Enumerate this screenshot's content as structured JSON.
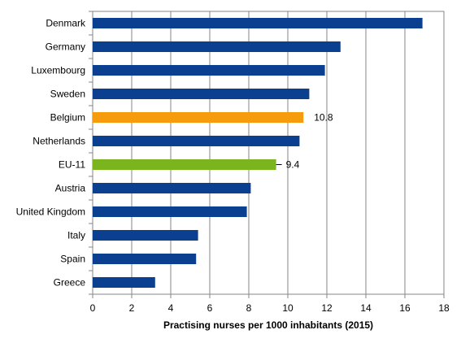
{
  "chart_data": {
    "type": "bar",
    "orientation": "horizontal",
    "categories": [
      "Denmark",
      "Germany",
      "Luxembourg",
      "Sweden",
      "Belgium",
      "Netherlands",
      "EU-11",
      "Austria",
      "United Kingdom",
      "Italy",
      "Spain",
      "Greece"
    ],
    "values": [
      16.9,
      12.7,
      11.9,
      11.1,
      10.8,
      10.6,
      9.4,
      8.1,
      7.9,
      5.4,
      5.3,
      3.2
    ],
    "title": "",
    "xlabel": "Practising nurses per 1000 inhabitants (2015)",
    "ylabel": "",
    "xlim": [
      0,
      18
    ],
    "x_ticks": [
      "0",
      "2",
      "4",
      "6",
      "8",
      "10",
      "12",
      "14",
      "16",
      "18"
    ],
    "grid": "vertical",
    "legend": "none",
    "default_color": "#0b3f8f",
    "highlights": [
      {
        "category": "Belgium",
        "color": "#f59b0c",
        "label": "10.8"
      },
      {
        "category": "EU-11",
        "color": "#7ab51d",
        "label": "9.4",
        "error_bar": true
      }
    ]
  }
}
